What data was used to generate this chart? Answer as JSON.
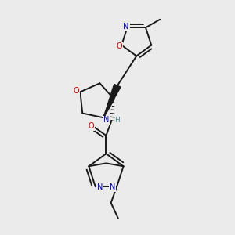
{
  "background_color": "#ebebeb",
  "atom_colors": {
    "C": "#1a1a1a",
    "N": "#0000cc",
    "O": "#cc0000",
    "H": "#4a9090"
  },
  "bond_color": "#1a1a1a",
  "bond_width": 1.4,
  "dbo": 0.012,
  "font_size_atom": 7.0
}
